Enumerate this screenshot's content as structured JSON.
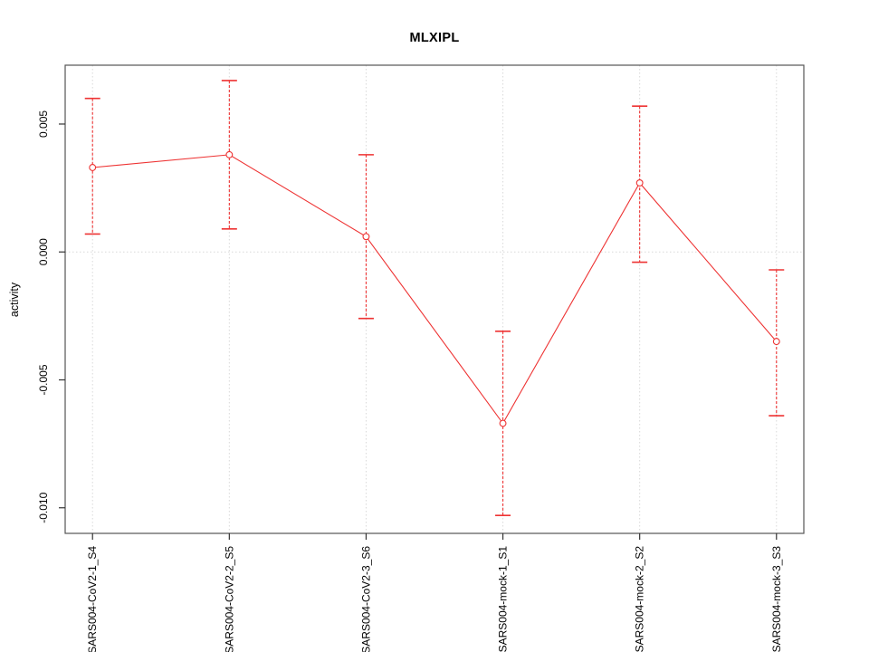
{
  "title": "MLXIPL",
  "chart_data": {
    "type": "line",
    "title": "MLXIPL",
    "xlabel": "",
    "ylabel": "activity",
    "categories": [
      "SARS004-CoV2-1_S4",
      "SARS004-CoV2-2_S5",
      "SARS004-CoV2-3_S6",
      "SARS004-mock-1_S1",
      "SARS004-mock-2_S2",
      "SARS004-mock-3_S3"
    ],
    "series": [
      {
        "name": "activity",
        "values": [
          0.0033,
          0.0038,
          0.0006,
          -0.0067,
          0.0027,
          -0.0035
        ],
        "upper": [
          0.006,
          0.0067,
          0.0038,
          -0.0031,
          0.0057,
          -0.0007
        ],
        "lower": [
          0.0007,
          0.0009,
          -0.0026,
          -0.0103,
          -0.0004,
          -0.0064
        ]
      }
    ],
    "ylim": [
      -0.011,
      0.0073
    ],
    "yticks": [
      0.005,
      0.0,
      -0.005,
      -0.01
    ],
    "ytick_labels": [
      "0.005",
      "0.000",
      "-0.005",
      "-0.010"
    ],
    "grid": "dotted vertical line at each category; dotted horizontal line at y=0",
    "legend": "none",
    "marker": "open-circle",
    "error_bar_style": "dashed vertical line with solid caps",
    "colors": {
      "series": "#ee3333",
      "grid": "#d9d9d9",
      "frame": "#555555",
      "tick": "#333333",
      "text": "#000000",
      "background": "#ffffff"
    }
  }
}
